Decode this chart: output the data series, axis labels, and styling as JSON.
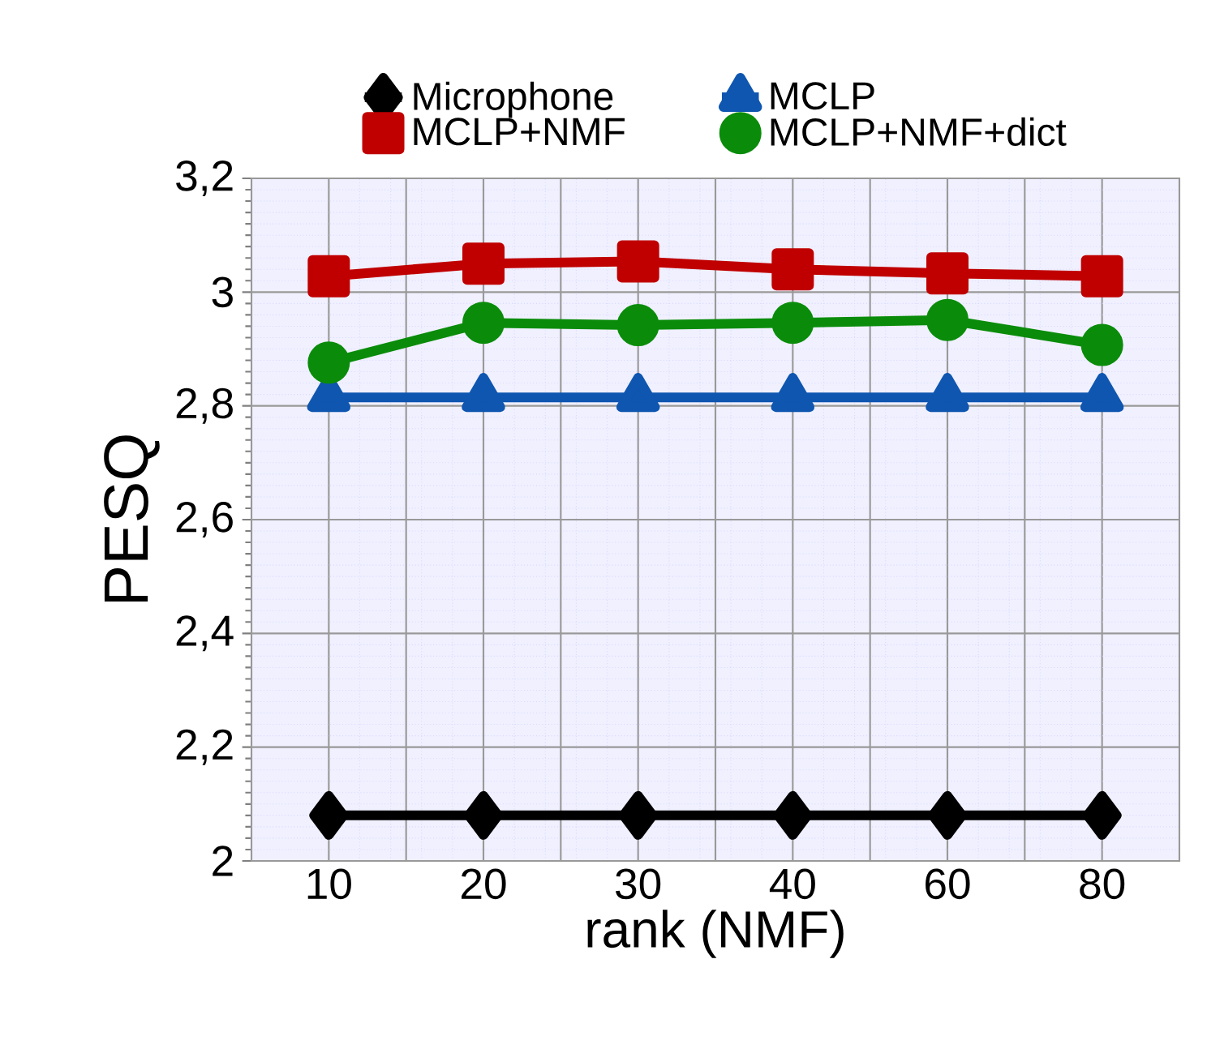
{
  "chart_data": {
    "type": "line",
    "xlabel": "rank (NMF)",
    "ylabel": "PESQ",
    "categories": [
      "10",
      "20",
      "30",
      "40",
      "60",
      "80"
    ],
    "series": [
      {
        "name": "Microphone",
        "color": "#000000",
        "marker": "diamond",
        "values": [
          2.08,
          2.08,
          2.08,
          2.08,
          2.08,
          2.08
        ]
      },
      {
        "name": "MCLP",
        "color": "#0e56b0",
        "marker": "triangle",
        "values": [
          2.815,
          2.815,
          2.815,
          2.815,
          2.815,
          2.815
        ]
      },
      {
        "name": "MCLP+NMF",
        "color": "#c00000",
        "marker": "square",
        "values": [
          3.028,
          3.05,
          3.054,
          3.04,
          3.033,
          3.028
        ]
      },
      {
        "name": "MCLP+NMF+dict",
        "color": "#0a8c0a",
        "marker": "circle",
        "values": [
          2.876,
          2.946,
          2.942,
          2.946,
          2.951,
          2.907
        ]
      }
    ],
    "ylim": [
      2,
      3.2
    ],
    "yticks": [
      {
        "value": 2,
        "label": "2"
      },
      {
        "value": 2.2,
        "label": "2,2"
      },
      {
        "value": 2.4,
        "label": "2,4"
      },
      {
        "value": 2.6,
        "label": "2,6"
      },
      {
        "value": 2.8,
        "label": "2,8"
      },
      {
        "value": 3,
        "label": "3"
      },
      {
        "value": 3.2,
        "label": "3,2"
      }
    ],
    "grid": true,
    "legend": "top"
  }
}
